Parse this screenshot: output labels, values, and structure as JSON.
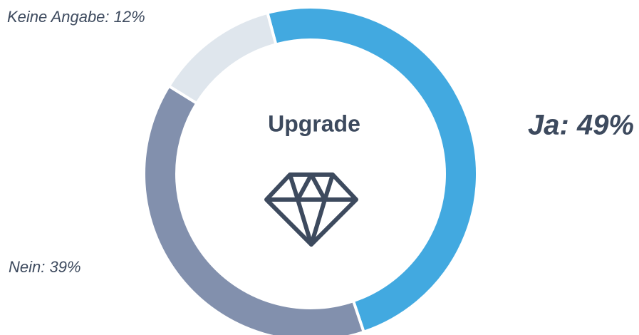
{
  "chart_data": {
    "type": "donut",
    "title": "Upgrade",
    "values": [
      49,
      39,
      12
    ],
    "value_labels": [
      "Ja: 49%",
      "Nein: 39%",
      "Keine Angabe: 12%"
    ],
    "colors": [
      "#42a9e0",
      "#8290ad",
      "#dfe6ed"
    ]
  }
}
